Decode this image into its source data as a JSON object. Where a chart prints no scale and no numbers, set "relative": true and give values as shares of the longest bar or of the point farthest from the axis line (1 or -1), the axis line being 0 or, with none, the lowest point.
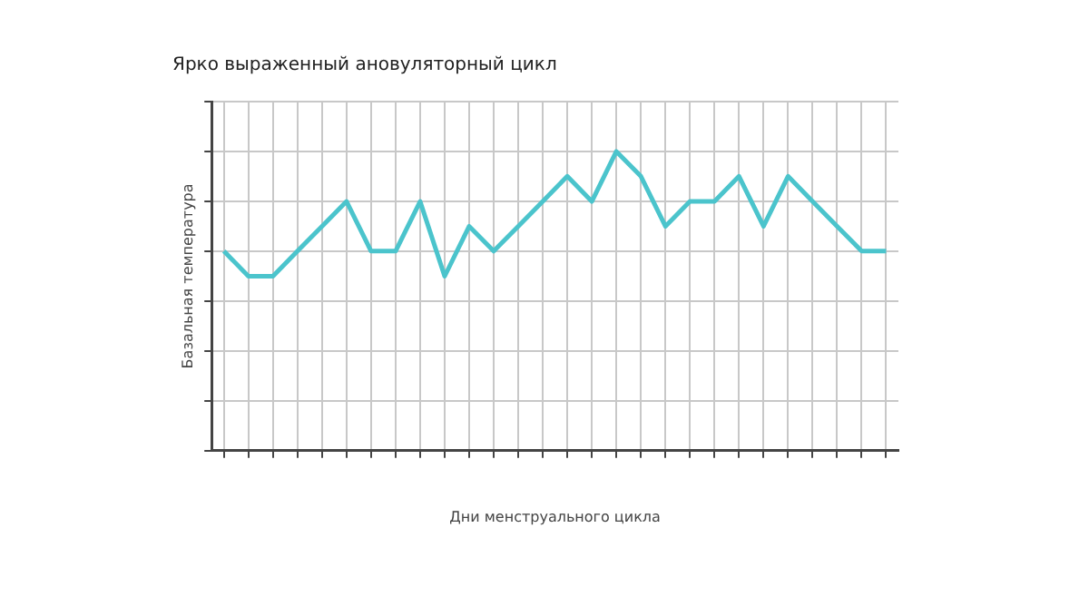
{
  "chart_data": {
    "type": "line",
    "title": "Ярко выраженный ановуляторный цикл",
    "xlabel": "Дни менструального цикла",
    "ylabel": "Базальная температура",
    "relative": true,
    "grid": true,
    "legend": false,
    "marker": "none",
    "line_style": "solid",
    "categories": [
      null,
      null,
      null,
      null,
      null,
      null,
      null,
      null,
      null,
      null,
      null,
      null,
      null,
      null,
      null,
      null,
      null,
      null,
      null,
      null,
      null,
      null,
      null,
      null,
      null,
      null,
      null,
      null
    ],
    "series": [
      {
        "color": "#4bc4cc",
        "values": [
          0.667,
          0.583,
          0.583,
          0.667,
          0.75,
          0.833,
          0.667,
          0.667,
          0.833,
          0.583,
          0.75,
          0.667,
          0.75,
          0.833,
          0.917,
          0.833,
          1,
          0.917,
          0.75,
          0.833,
          0.833,
          0.917,
          0.75,
          0.917,
          0.833,
          0.75,
          0.667,
          0.667
        ]
      }
    ]
  }
}
